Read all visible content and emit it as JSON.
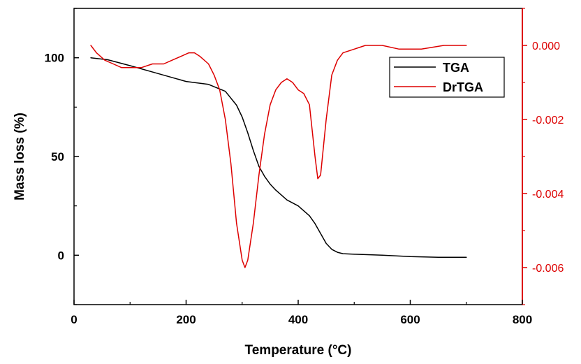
{
  "chart_data": {
    "type": "line",
    "title": "",
    "xlabel": "Temperature (°C)",
    "ylabel_left": "Mass loss (%)",
    "ylabel_right": "",
    "xlim": [
      0,
      800
    ],
    "ylim_left": [
      -25,
      125
    ],
    "ylim_right": [
      -0.007,
      0.001
    ],
    "x_ticks": [
      0,
      200,
      400,
      600,
      800
    ],
    "x_tick_labels": [
      "0",
      "200",
      "400",
      "600",
      "800"
    ],
    "y_left_ticks": [
      0,
      50,
      100
    ],
    "y_left_tick_labels": [
      "0",
      "50",
      "100"
    ],
    "y_right_ticks": [
      0,
      -0.002,
      -0.004,
      -0.006
    ],
    "y_right_tick_labels": [
      "0.000",
      "-0.002",
      "-0.004",
      "-0.006"
    ],
    "grid": false,
    "legend": {
      "position": "top-right",
      "entries": [
        "TGA",
        "DrTGA"
      ]
    },
    "colors": {
      "tga": "#000000",
      "drtga": "#dd0000",
      "right_axis": "#dd0000"
    },
    "series": [
      {
        "name": "TGA",
        "axis": "left",
        "x": [
          30,
          60,
          100,
          150,
          200,
          240,
          270,
          290,
          300,
          310,
          320,
          330,
          340,
          350,
          360,
          380,
          400,
          420,
          430,
          440,
          450,
          460,
          470,
          480,
          500,
          550,
          600,
          650,
          700
        ],
        "y": [
          100,
          99,
          96,
          92,
          88,
          86.5,
          83,
          76,
          70,
          62,
          53,
          45,
          40,
          36,
          33,
          28,
          25,
          20,
          16,
          11,
          6,
          3,
          1.5,
          0.8,
          0.5,
          0,
          -0.7,
          -1,
          -1
        ]
      },
      {
        "name": "DrTGA",
        "axis": "right",
        "x": [
          30,
          40,
          55,
          70,
          85,
          100,
          120,
          140,
          160,
          175,
          190,
          205,
          215,
          225,
          240,
          250,
          260,
          270,
          280,
          290,
          300,
          305,
          310,
          320,
          330,
          340,
          350,
          360,
          370,
          380,
          390,
          400,
          410,
          420,
          430,
          435,
          440,
          450,
          460,
          470,
          480,
          500,
          520,
          550,
          580,
          620,
          660,
          700
        ],
        "y": [
          0.0,
          -0.0002,
          -0.0004,
          -0.0005,
          -0.0006,
          -0.0006,
          -0.0006,
          -0.0005,
          -0.0005,
          -0.0004,
          -0.0003,
          -0.0002,
          -0.0002,
          -0.0003,
          -0.0005,
          -0.0008,
          -0.0012,
          -0.002,
          -0.0032,
          -0.0048,
          -0.0058,
          -0.006,
          -0.0058,
          -0.0048,
          -0.0035,
          -0.0024,
          -0.0016,
          -0.0012,
          -0.001,
          -0.0009,
          -0.001,
          -0.0012,
          -0.0013,
          -0.0016,
          -0.003,
          -0.0036,
          -0.0035,
          -0.002,
          -0.0008,
          -0.0004,
          -0.0002,
          -0.0001,
          0.0,
          0.0,
          -0.0001,
          -0.0001,
          0.0,
          0.0
        ]
      }
    ]
  }
}
